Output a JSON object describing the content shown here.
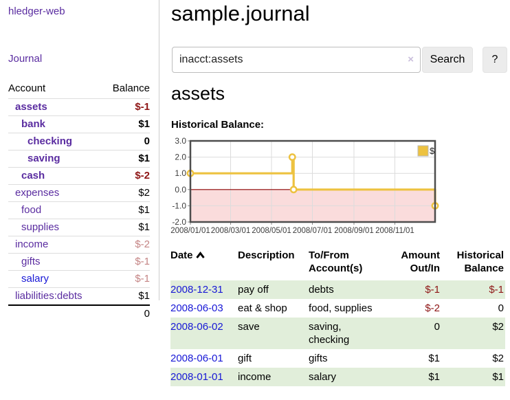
{
  "app": {
    "brand": "hledger-web",
    "nav_journal": "Journal"
  },
  "sidebar": {
    "headers": {
      "account": "Account",
      "balance": "Balance"
    },
    "accounts": [
      {
        "name": "assets",
        "balance": "$-1"
      },
      {
        "name": "bank",
        "balance": "$1"
      },
      {
        "name": "checking",
        "balance": "0"
      },
      {
        "name": "saving",
        "balance": "$1"
      },
      {
        "name": "cash",
        "balance": "$-2"
      },
      {
        "name": "expenses",
        "balance": "$2"
      },
      {
        "name": "food",
        "balance": "$1"
      },
      {
        "name": "supplies",
        "balance": "$1"
      },
      {
        "name": "income",
        "balance": "$-2"
      },
      {
        "name": "gifts",
        "balance": "$-1"
      },
      {
        "name": "salary",
        "balance": "$-1"
      },
      {
        "name": "liabilities:debts",
        "balance": "$1"
      }
    ],
    "total": "0"
  },
  "header": {
    "title": "sample.journal"
  },
  "search": {
    "query": "inacct:assets",
    "clear_icon": "×",
    "button": "Search",
    "help_button": "?"
  },
  "account_page": {
    "heading": "assets",
    "chart_label": "Historical Balance:"
  },
  "chart_data": {
    "type": "line",
    "style": "step-after",
    "title": "Historical Balance",
    "series": [
      {
        "name": "$",
        "color": "#EDC240",
        "points": [
          [
            "2008-01-01",
            1
          ],
          [
            "2008-06-01",
            2
          ],
          [
            "2008-06-03",
            0
          ],
          [
            "2008-12-31",
            -1
          ]
        ]
      }
    ],
    "xlim": [
      "2008-01-01",
      "2008-12-31"
    ],
    "ylim": [
      -2,
      3
    ],
    "x_ticks": [
      "2008/01/01",
      "2008/03/01",
      "2008/05/01",
      "2008/07/01",
      "2008/09/01",
      "2008/11/01"
    ],
    "y_ticks": [
      3.0,
      2.0,
      1.0,
      0.0,
      -1.0,
      -2.0
    ],
    "grid": true,
    "legend_position": "top-right",
    "negative_region_color": "#FADCDC",
    "zero_line_color": "#8B0000"
  },
  "register": {
    "headers": {
      "date": "Date",
      "description": "Description",
      "tofrom1": "To/From",
      "tofrom2": "Account(s)",
      "amount1": "Amount",
      "amount2": "Out/In",
      "hist1": "Historical",
      "hist2": "Balance"
    },
    "rows": [
      {
        "date": "2008-12-31",
        "description": "pay off",
        "tofrom": "debts",
        "amount": "$-1",
        "balance": "$-1"
      },
      {
        "date": "2008-06-03",
        "description": "eat & shop",
        "tofrom": "food, supplies",
        "amount": "$-2",
        "balance": "0"
      },
      {
        "date": "2008-06-02",
        "description": "save",
        "tofrom": "saving, checking",
        "amount": "0",
        "balance": "$2"
      },
      {
        "date": "2008-06-01",
        "description": "gift",
        "tofrom": "gifts",
        "amount": "$1",
        "balance": "$2"
      },
      {
        "date": "2008-01-01",
        "description": "income",
        "tofrom": "salary",
        "amount": "$1",
        "balance": "$1"
      }
    ]
  }
}
